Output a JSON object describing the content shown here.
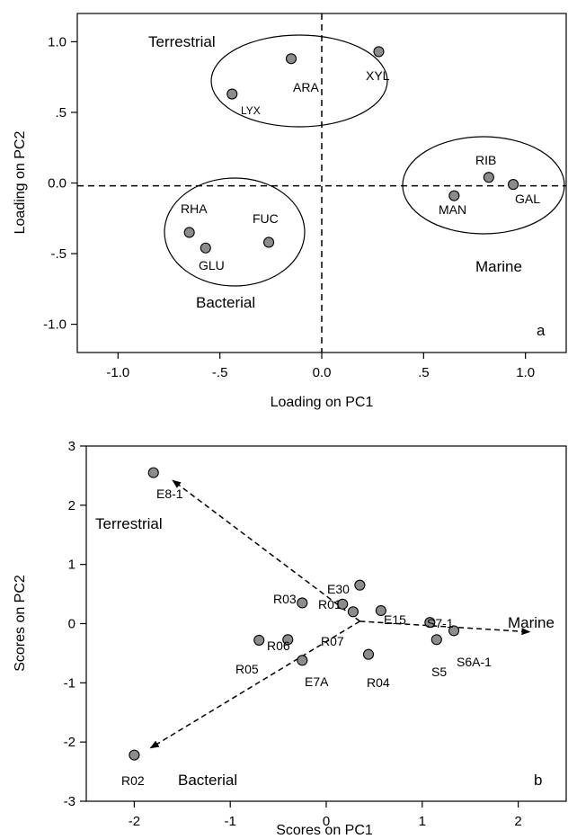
{
  "chart_data": [
    {
      "type": "scatter",
      "panel_letter": "a",
      "xlabel": "Loading on PC1",
      "ylabel": "Loading on PC2",
      "xlim": [
        -1.2,
        1.2
      ],
      "ylim": [
        -1.2,
        1.2
      ],
      "xticks": [
        {
          "v": -1.0,
          "label": "-1.0"
        },
        {
          "v": -0.5,
          "label": "-.5"
        },
        {
          "v": 0.0,
          "label": "0.0"
        },
        {
          "v": 0.5,
          "label": ".5"
        },
        {
          "v": 1.0,
          "label": "1.0"
        }
      ],
      "yticks": [
        {
          "v": 1.0,
          "label": "1.0"
        },
        {
          "v": 0.5,
          "label": ".5"
        },
        {
          "v": 0.0,
          "label": "0.0"
        },
        {
          "v": -0.5,
          "label": "-.5"
        },
        {
          "v": -1.0,
          "label": "-1.0"
        }
      ],
      "points": [
        {
          "label": "LYX",
          "x": -0.44,
          "y": 0.63
        },
        {
          "label": "ARA",
          "x": -0.15,
          "y": 0.88
        },
        {
          "label": "XYL",
          "x": 0.28,
          "y": 0.93
        },
        {
          "label": "RIB",
          "x": 0.82,
          "y": 0.04
        },
        {
          "label": "GAL",
          "x": 0.94,
          "y": -0.01
        },
        {
          "label": "MAN",
          "x": 0.65,
          "y": -0.09
        },
        {
          "label": "RHA",
          "x": -0.65,
          "y": -0.35
        },
        {
          "label": "GLU",
          "x": -0.57,
          "y": -0.46
        },
        {
          "label": "FUC",
          "x": -0.26,
          "y": -0.42
        }
      ],
      "groups": [
        "Terrestrial",
        "Marine",
        "Bacterial"
      ],
      "reference_lines": {
        "x": 0.0,
        "y": -0.02,
        "style": "dashed"
      }
    },
    {
      "type": "scatter",
      "panel_letter": "b",
      "xlabel": "Scores on PC1",
      "ylabel": "Scores on PC2",
      "xlim": [
        -2.5,
        2.5
      ],
      "ylim": [
        -3,
        3
      ],
      "xticks": [
        {
          "v": -2,
          "label": "-2"
        },
        {
          "v": -1,
          "label": "-1"
        },
        {
          "v": 0,
          "label": "0"
        },
        {
          "v": 1,
          "label": "1"
        },
        {
          "v": 2,
          "label": "2"
        }
      ],
      "yticks": [
        {
          "v": 3,
          "label": "3"
        },
        {
          "v": 2,
          "label": "2"
        },
        {
          "v": 1,
          "label": "1"
        },
        {
          "v": 0,
          "label": "0"
        },
        {
          "v": -1,
          "label": "-1"
        },
        {
          "v": -2,
          "label": "-2"
        },
        {
          "v": -3,
          "label": "-3"
        }
      ],
      "points": [
        {
          "label": "E8-1",
          "x": -1.8,
          "y": 2.55
        },
        {
          "label": "E30",
          "x": 0.35,
          "y": 0.65
        },
        {
          "label": "R03",
          "x": -0.25,
          "y": 0.35
        },
        {
          "label": "R01",
          "x": 0.17,
          "y": 0.33
        },
        {
          "label": "R07",
          "x": 0.28,
          "y": 0.2
        },
        {
          "label": "E15",
          "x": 0.57,
          "y": 0.22
        },
        {
          "label": "S7-1",
          "x": 1.08,
          "y": 0.02
        },
        {
          "label": "S6A-1",
          "x": 1.33,
          "y": -0.12
        },
        {
          "label": "S5",
          "x": 1.15,
          "y": -0.27
        },
        {
          "label": "R05",
          "x": -0.7,
          "y": -0.28
        },
        {
          "label": "R06",
          "x": -0.4,
          "y": -0.27
        },
        {
          "label": "E7A",
          "x": -0.25,
          "y": -0.62
        },
        {
          "label": "R04",
          "x": 0.44,
          "y": -0.52
        },
        {
          "label": "R02",
          "x": -2.0,
          "y": -2.22
        }
      ],
      "groups": [
        "Terrestrial",
        "Marine",
        "Bacterial"
      ],
      "arrows": {
        "origin": {
          "x": 0.35,
          "y": 0.04
        },
        "terrestrial_tip": {
          "x": -1.6,
          "y": 2.42
        },
        "marine_tip": {
          "x": 2.12,
          "y": -0.14
        },
        "bacterial_tip": {
          "x": -1.83,
          "y": -2.1
        }
      }
    }
  ]
}
